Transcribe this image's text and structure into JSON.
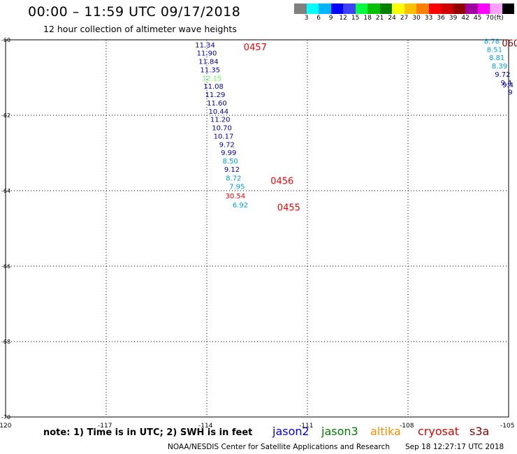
{
  "title": "00:00 – 11:59 UTC 09/17/2018",
  "subtitle": "12 hour collection of altimeter wave heights",
  "colorbar": {
    "colors": [
      "#808080",
      "#00ffff",
      "#00b4ff",
      "#0000ff",
      "#4040ff",
      "#00ff40",
      "#00c000",
      "#008000",
      "#ffff00",
      "#ffc000",
      "#ff8000",
      "#ff0000",
      "#d00000",
      "#900000",
      "#a000a0",
      "#ff00ff",
      "#ffa0ff",
      "#000000"
    ],
    "labels": [
      "3",
      "6",
      "9",
      "12",
      "15",
      "18",
      "21",
      "24",
      "27",
      "30",
      "33",
      "36",
      "39",
      "42",
      "45",
      "70",
      "(ft)"
    ]
  },
  "chart_data": {
    "type": "scatter",
    "xlim": [
      -120,
      -105
    ],
    "ylim": [
      -70,
      -60
    ],
    "x_ticks": [
      "-120",
      "-117",
      "-114",
      "-111",
      "-108",
      "-105"
    ],
    "y_ticks": [
      "-60",
      "-62",
      "-64",
      "-66",
      "-68",
      "-70"
    ],
    "passes": [
      {
        "label": "0457",
        "color": "#ff0000",
        "lon": -112.9,
        "lat": -60.2
      },
      {
        "label": "0456",
        "color": "#ff0000",
        "lon": -112.1,
        "lat": -63.75
      },
      {
        "label": "0455",
        "color": "#ff0000",
        "lon": -111.9,
        "lat": -64.45
      },
      {
        "label": "060",
        "color": "#900000",
        "lon": -105.2,
        "lat": -60.1
      }
    ],
    "points": [
      {
        "v": "11.34",
        "c": "#0000b0",
        "lon": -114.05,
        "lat": -60.2
      },
      {
        "v": "11.90",
        "c": "#0000b0",
        "lon": -114.0,
        "lat": -60.42
      },
      {
        "v": "11.84",
        "c": "#0000b0",
        "lon": -113.95,
        "lat": -60.64
      },
      {
        "v": "11.35",
        "c": "#0000b0",
        "lon": -113.9,
        "lat": -60.86
      },
      {
        "v": "12.15",
        "c": "#60ff60",
        "lon": -113.85,
        "lat": -61.08
      },
      {
        "v": "11.08",
        "c": "#0000b0",
        "lon": -113.8,
        "lat": -61.3
      },
      {
        "v": "11.29",
        "c": "#0000b0",
        "lon": -113.75,
        "lat": -61.52
      },
      {
        "v": "11.60",
        "c": "#0000b0",
        "lon": -113.7,
        "lat": -61.74
      },
      {
        "v": "10.44",
        "c": "#0000b0",
        "lon": -113.65,
        "lat": -61.96
      },
      {
        "v": "11.20",
        "c": "#0000b0",
        "lon": -113.6,
        "lat": -62.18
      },
      {
        "v": "10.70",
        "c": "#0000b0",
        "lon": -113.55,
        "lat": -62.4
      },
      {
        "v": "10.17",
        "c": "#0000b0",
        "lon": -113.5,
        "lat": -62.62
      },
      {
        "v": "9.72",
        "c": "#0000b0",
        "lon": -113.4,
        "lat": -62.84
      },
      {
        "v": "9.99",
        "c": "#0000b0",
        "lon": -113.35,
        "lat": -63.06
      },
      {
        "v": "8.50",
        "c": "#00a0e0",
        "lon": -113.3,
        "lat": -63.28
      },
      {
        "v": "9.12",
        "c": "#0000b0",
        "lon": -113.25,
        "lat": -63.5
      },
      {
        "v": "8.72",
        "c": "#00a0e0",
        "lon": -113.2,
        "lat": -63.73
      },
      {
        "v": "7.95",
        "c": "#00a0e0",
        "lon": -113.1,
        "lat": -63.95
      },
      {
        "v": "30.54",
        "c": "#e00000",
        "lon": -113.15,
        "lat": -64.2
      },
      {
        "v": "6.92",
        "c": "#00a0e0",
        "lon": -113.0,
        "lat": -64.44
      },
      {
        "v": "8.78",
        "c": "#00a0e0",
        "lon": -105.5,
        "lat": -60.1
      },
      {
        "v": "8.51",
        "c": "#00a0e0",
        "lon": -105.42,
        "lat": -60.32
      },
      {
        "v": "8.81",
        "c": "#00a0e0",
        "lon": -105.35,
        "lat": -60.54
      },
      {
        "v": "8.39",
        "c": "#00a0e0",
        "lon": -105.27,
        "lat": -60.76
      },
      {
        "v": "9.72",
        "c": "#0000b0",
        "lon": -105.18,
        "lat": -60.98
      },
      {
        "v": "9.4",
        "c": "#0000b0",
        "lon": -105.07,
        "lat": -61.2
      },
      {
        "v": "9.4",
        "c": "#0000b0",
        "lon": -105.02,
        "lat": -61.26
      },
      {
        "v": "9",
        "c": "#0000b0",
        "lon": -104.95,
        "lat": -61.45
      }
    ]
  },
  "note": "note: 1) Time is in UTC; 2) SWH is in feet",
  "legend": [
    {
      "name": "jason2",
      "color": "#0000ff"
    },
    {
      "name": "jason3",
      "color": "#008000"
    },
    {
      "name": "altika",
      "color": "#ff8c00"
    },
    {
      "name": "cryosat",
      "color": "#e00000"
    },
    {
      "name": "s3a",
      "color": "#800000"
    }
  ],
  "footer": "NOAA/NESDIS Center for Satellite Applications and Research",
  "timestamp": "Sep 18 12:27:17 UTC 2018"
}
